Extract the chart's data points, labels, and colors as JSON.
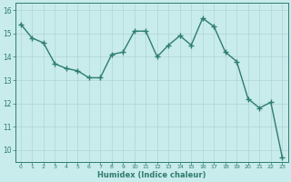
{
  "x": [
    0,
    1,
    2,
    3,
    4,
    5,
    6,
    7,
    8,
    9,
    10,
    11,
    12,
    13,
    14,
    15,
    16,
    17,
    18,
    19,
    20,
    21,
    22,
    23
  ],
  "y": [
    15.4,
    14.8,
    14.6,
    13.7,
    13.5,
    13.4,
    13.1,
    13.1,
    14.1,
    14.2,
    15.1,
    15.1,
    14.0,
    14.5,
    14.9,
    14.5,
    15.65,
    15.3,
    14.2,
    13.8,
    12.2,
    11.8,
    12.05,
    9.7
  ],
  "title": "",
  "xlabel": "Humidex (Indice chaleur)",
  "xlim": [
    -0.5,
    23.5
  ],
  "ylim": [
    9.5,
    16.3
  ],
  "yticks": [
    10,
    11,
    12,
    13,
    14,
    15,
    16
  ],
  "xticks": [
    0,
    1,
    2,
    3,
    4,
    5,
    6,
    7,
    8,
    9,
    10,
    11,
    12,
    13,
    14,
    15,
    16,
    17,
    18,
    19,
    20,
    21,
    22,
    23
  ],
  "line_color": "#2e7d6e",
  "marker": "+",
  "bg_color": "#c8ebeb",
  "grid_color": "#b0d4d4",
  "axis_color": "#2e7d6e",
  "tick_color": "#2e7d6e",
  "font_color": "#2e7d6e",
  "linewidth": 1.0,
  "markersize": 4,
  "markeredgewidth": 1.0
}
